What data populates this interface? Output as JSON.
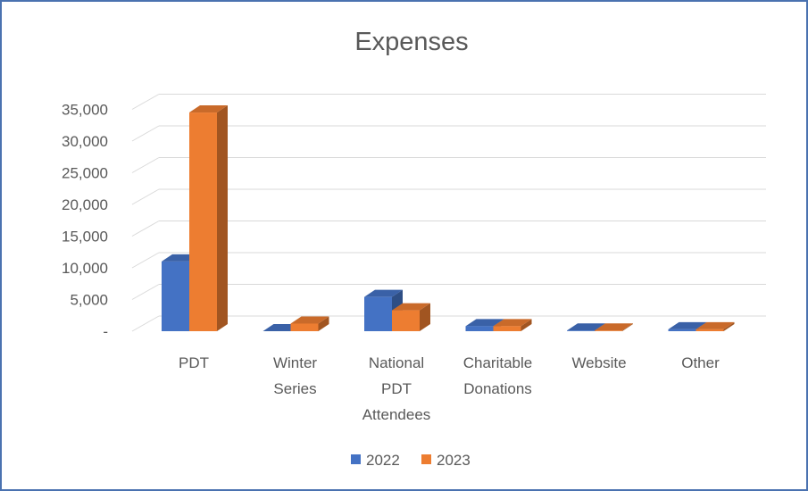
{
  "chart_data": {
    "type": "bar",
    "title": "Expenses",
    "categories": [
      "PDT",
      "Winter Series",
      "National PDT Attendees",
      "Charitable Donations",
      "Website",
      "Other"
    ],
    "category_label_lines": [
      [
        "PDT"
      ],
      [
        "Winter",
        "Series"
      ],
      [
        "National",
        "PDT",
        "Attendees"
      ],
      [
        "Charitable",
        "Donations"
      ],
      [
        "Website"
      ],
      [
        "Other"
      ]
    ],
    "series": [
      {
        "name": "2022",
        "color": "#4472c4",
        "values": [
          11000,
          0,
          5400,
          800,
          100,
          300
        ]
      },
      {
        "name": "2023",
        "color": "#ed7d31",
        "values": [
          34500,
          1200,
          3300,
          800,
          100,
          300
        ]
      }
    ],
    "yticks": [
      "-",
      "5,000",
      "10,000",
      "15,000",
      "20,000",
      "25,000",
      "30,000",
      "35,000"
    ],
    "ylim": [
      0,
      37500
    ],
    "grid": true,
    "legend_position": "bottom"
  }
}
